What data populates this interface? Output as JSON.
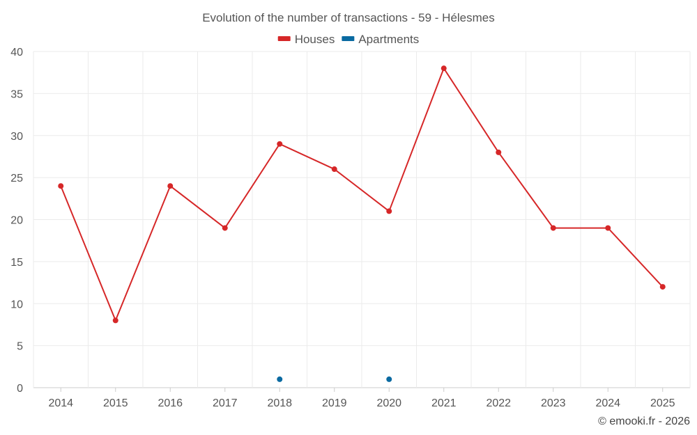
{
  "chart_data": {
    "type": "line",
    "title": "Evolution of the number of transactions - 59 - Hélesmes",
    "xlabel": "",
    "ylabel": "",
    "categories": [
      "2014",
      "2015",
      "2016",
      "2017",
      "2018",
      "2019",
      "2020",
      "2021",
      "2022",
      "2023",
      "2024",
      "2025"
    ],
    "series": [
      {
        "name": "Houses",
        "color": "#d62728",
        "values": [
          24,
          8,
          24,
          19,
          29,
          26,
          21,
          38,
          28,
          19,
          19,
          12
        ],
        "connected": true
      },
      {
        "name": "Apartments",
        "color": "#0a6aa1",
        "values": [
          null,
          null,
          null,
          null,
          1,
          null,
          1,
          null,
          null,
          null,
          null,
          null
        ],
        "connected": false
      }
    ],
    "ylim": [
      0,
      40
    ],
    "yticks": [
      0,
      5,
      10,
      15,
      20,
      25,
      30,
      35,
      40
    ],
    "grid": true,
    "legend_position": "top-center"
  },
  "credit": "© emooki.fr - 2026"
}
